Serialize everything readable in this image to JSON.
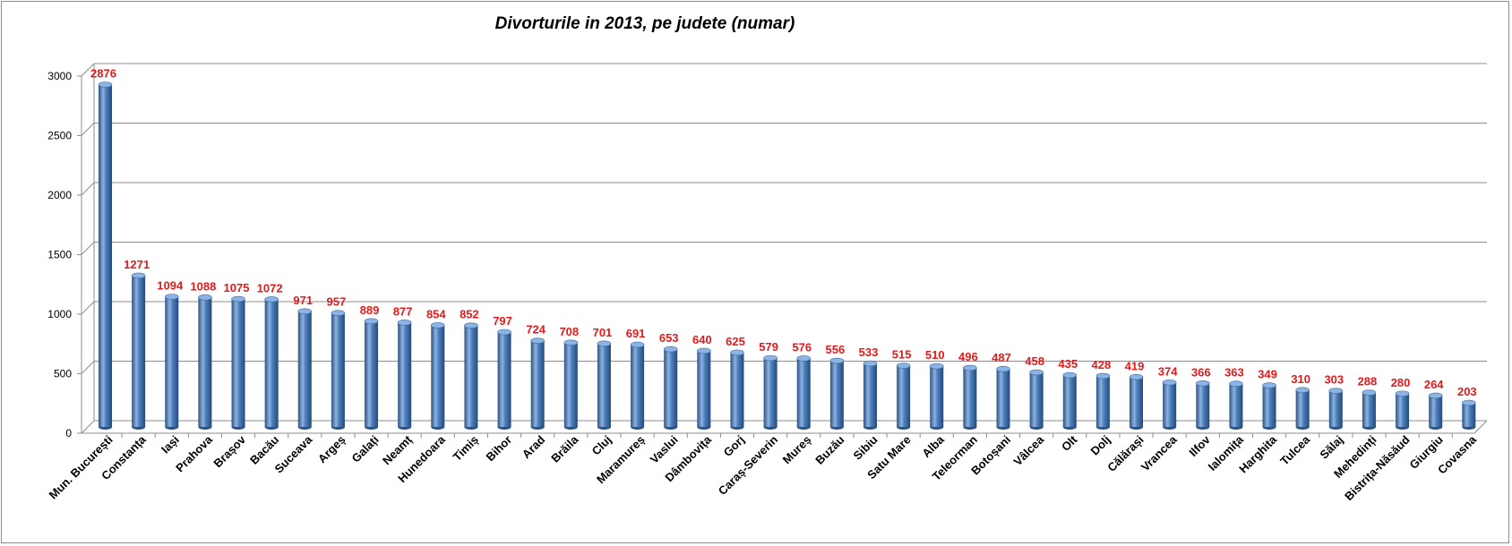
{
  "chart_data": {
    "type": "bar",
    "title": "Divorturile in 2013, pe judete (numar)",
    "xlabel": "",
    "ylabel": "",
    "ylim": [
      0,
      3000
    ],
    "yticks": [
      0,
      500,
      1000,
      1500,
      2000,
      2500,
      3000
    ],
    "grid": true,
    "legend": "none",
    "categories": [
      "Mun. București",
      "Constanța",
      "Iași",
      "Prahova",
      "Brașov",
      "Bacău",
      "Suceava",
      "Argeș",
      "Galați",
      "Neamț",
      "Hunedoara",
      "Timiș",
      "Bihor",
      "Arad",
      "Brăila",
      "Cluj",
      "Maramureș",
      "Vaslui",
      "Dâmbovița",
      "Gorj",
      "Caraș-Severin",
      "Mureș",
      "Buzău",
      "Sibiu",
      "Satu Mare",
      "Alba",
      "Teleorman",
      "Botoșani",
      "Vâlcea",
      "Olt",
      "Dolj",
      "Călărași",
      "Vrancea",
      "Ilfov",
      "Ialomița",
      "Harghita",
      "Tulcea",
      "Sălaj",
      "Mehedinți",
      "Bistrița-Năsăud",
      "Giurgiu",
      "Covasna"
    ],
    "values": [
      2876,
      1271,
      1094,
      1088,
      1075,
      1072,
      971,
      957,
      889,
      877,
      854,
      852,
      797,
      724,
      708,
      701,
      691,
      653,
      640,
      625,
      579,
      576,
      556,
      533,
      515,
      510,
      496,
      487,
      458,
      435,
      428,
      419,
      374,
      366,
      363,
      349,
      310,
      303,
      288,
      280,
      264,
      203
    ],
    "colors": {
      "bar": "#4f81bd",
      "bar_dark": "#2c5282",
      "bar_light": "#8db3e2",
      "data_label": "#e31a1c",
      "gridline": "#8c8c8c"
    }
  }
}
